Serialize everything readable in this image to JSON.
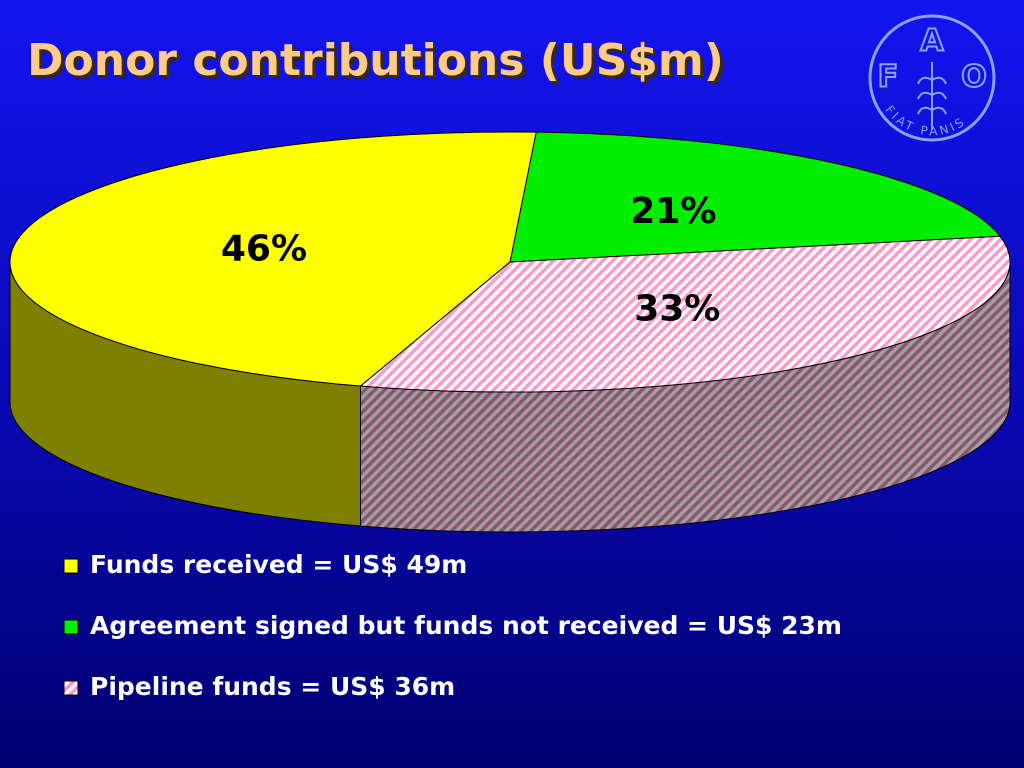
{
  "chart_data": {
    "type": "pie",
    "title": "Donor contributions (US$m)",
    "categories": [
      "Funds received = US$ 49m",
      "Agreement signed but funds not received = US$ 23m",
      "Pipeline funds = US$ 36m"
    ],
    "values": [
      46,
      21,
      33
    ],
    "value_labels": [
      "46%",
      "21%",
      "33%"
    ],
    "colors": [
      "#ffff00",
      "#00ee00",
      "#ff99cc"
    ],
    "hatch": [
      false,
      false,
      true
    ]
  },
  "logo": {
    "letters": [
      "F",
      "A",
      "O"
    ],
    "motto": "FIAT PANIS"
  }
}
